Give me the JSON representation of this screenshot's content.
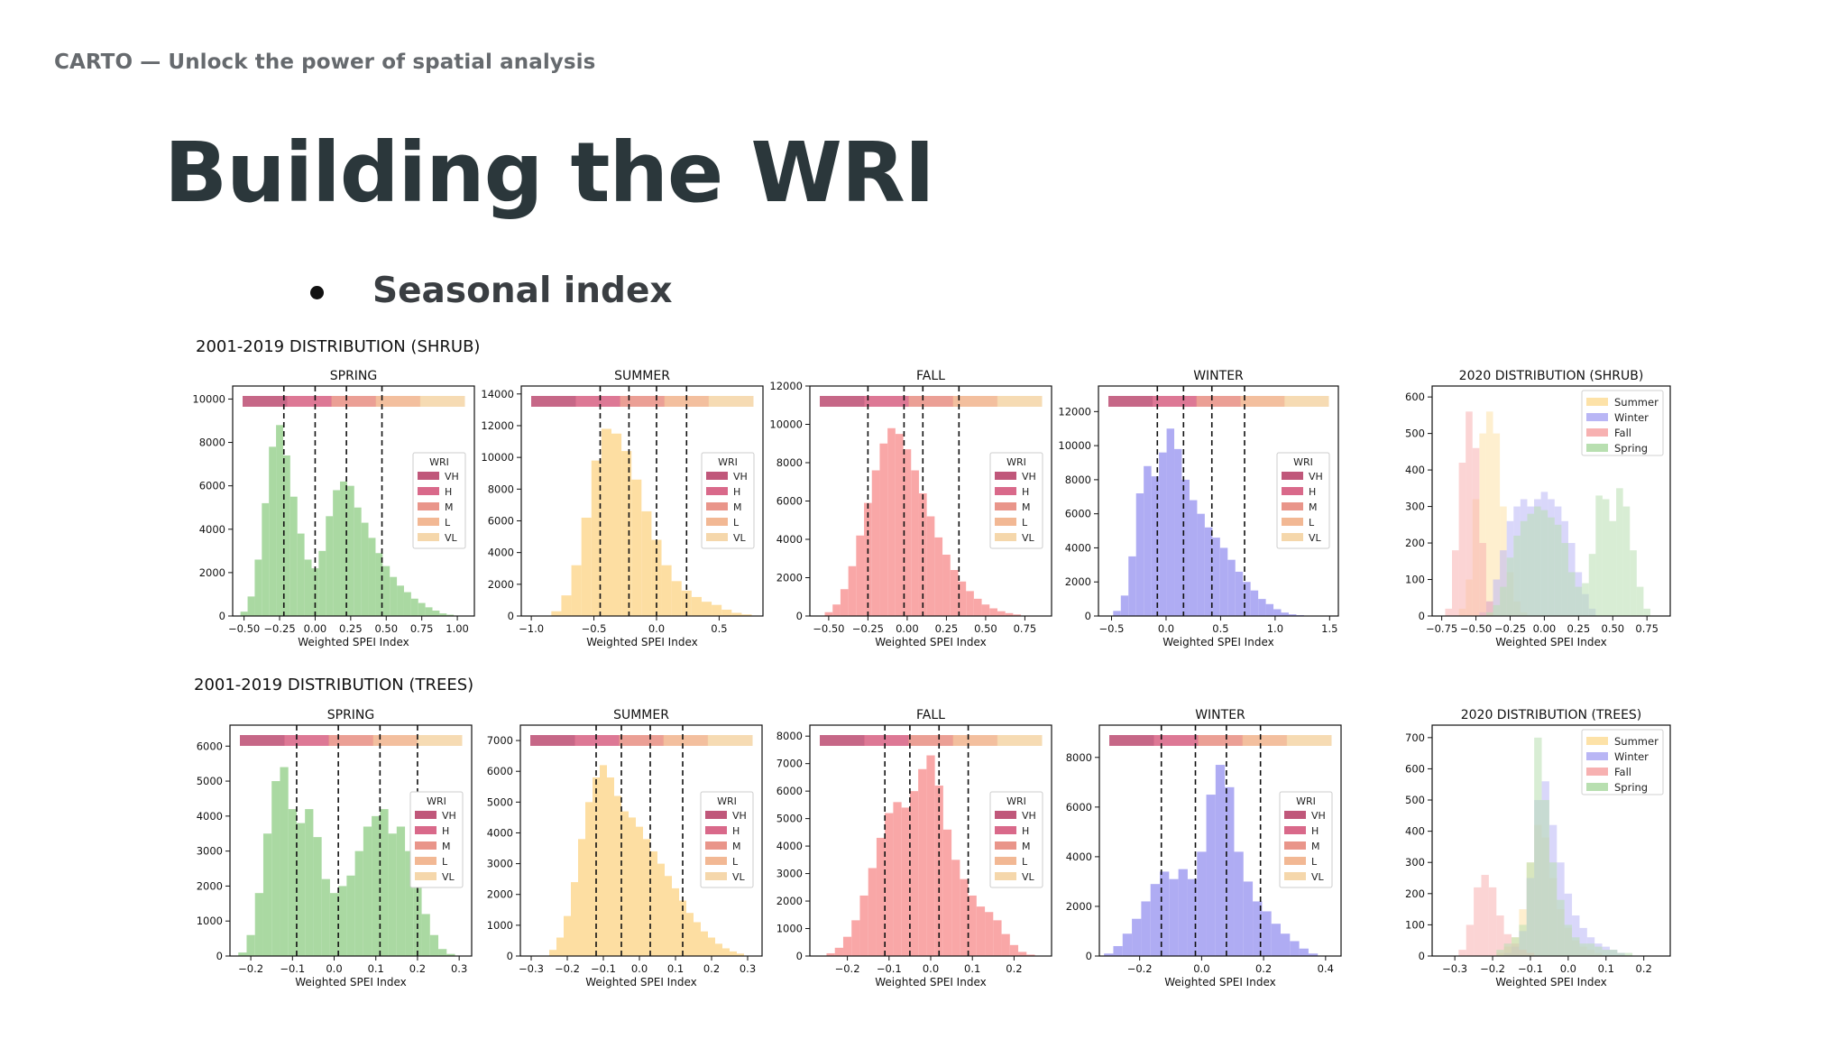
{
  "header": {
    "brand": "CARTO — Unlock the power of spatial analysis"
  },
  "slide": {
    "title": "Building the WRI",
    "bullet": "Seasonal index"
  },
  "rows": [
    {
      "title": "2001-2019 DISTRIBUTION (SHRUB)"
    },
    {
      "title": "2001-2019 DISTRIBUTION (TREES)"
    }
  ],
  "colors": {
    "spring": "#a3d69a",
    "summer": "#fddb9a",
    "fall": "#f9a0a0",
    "winter": "#a8a5f2",
    "wri": {
      "VH": "#c0577a",
      "H": "#d9698a",
      "M": "#e9958a",
      "L": "#f2b894",
      "VL": "#f5d7ab"
    },
    "overlay": {
      "Summer": "#fde2a8",
      "Winter": "#b9b6f5",
      "Fall": "#f7b1b1",
      "Spring": "#b8dfb0"
    }
  },
  "chart_data": [
    {
      "type": "bar",
      "title": "SPRING",
      "xlabel": "Weighted SPEI Index",
      "ylabel": "",
      "xlim": [
        -0.58,
        1.12
      ],
      "ylim": [
        0,
        10600
      ],
      "xticks": [
        -0.5,
        -0.25,
        0.0,
        0.25,
        0.5,
        0.75,
        1.0
      ],
      "xtick_labels": [
        "−0.50",
        "−0.25",
        "0.00",
        "0.25",
        "0.50",
        "0.75",
        "1.00"
      ],
      "yticks": [
        0,
        2000,
        4000,
        6000,
        8000,
        10000
      ],
      "x": [
        -0.5,
        -0.45,
        -0.4,
        -0.35,
        -0.3,
        -0.25,
        -0.2,
        -0.15,
        -0.1,
        -0.05,
        0.0,
        0.05,
        0.1,
        0.15,
        0.2,
        0.25,
        0.3,
        0.35,
        0.4,
        0.45,
        0.5,
        0.55,
        0.6,
        0.65,
        0.7,
        0.75,
        0.8,
        0.85,
        0.9,
        0.95,
        1.0
      ],
      "values": [
        200,
        900,
        2600,
        5200,
        7800,
        8800,
        7400,
        5500,
        3800,
        2600,
        2200,
        3000,
        4600,
        5800,
        6200,
        6000,
        5000,
        4300,
        3600,
        2900,
        2300,
        1800,
        1400,
        1100,
        800,
        600,
        400,
        250,
        120,
        60,
        20
      ],
      "thresholds": [
        -0.22,
        0.0,
        0.22,
        0.47
      ],
      "legend": {
        "title": "WRI",
        "labels": [
          "VH",
          "H",
          "M",
          "L",
          "VL"
        ]
      }
    },
    {
      "type": "bar",
      "title": "SUMMER",
      "xlabel": "Weighted SPEI Index",
      "ylabel": "",
      "xlim": [
        -1.08,
        0.85
      ],
      "ylim": [
        0,
        14500
      ],
      "xticks": [
        -1.0,
        -0.5,
        0.0,
        0.5
      ],
      "xtick_labels": [
        "−1.0",
        "−0.5",
        "0.0",
        "0.5"
      ],
      "yticks": [
        0,
        2000,
        4000,
        6000,
        8000,
        10000,
        12000,
        14000
      ],
      "x": [
        -0.8,
        -0.72,
        -0.64,
        -0.56,
        -0.48,
        -0.4,
        -0.32,
        -0.24,
        -0.16,
        -0.08,
        0.0,
        0.08,
        0.16,
        0.24,
        0.32,
        0.4,
        0.48,
        0.56,
        0.64,
        0.72
      ],
      "values": [
        300,
        1300,
        3200,
        6200,
        9800,
        11800,
        11500,
        10400,
        8600,
        6600,
        4800,
        3200,
        2200,
        1600,
        1200,
        900,
        700,
        400,
        200,
        100
      ],
      "thresholds": [
        -0.45,
        -0.22,
        0.0,
        0.24
      ],
      "legend": {
        "title": "WRI",
        "labels": [
          "VH",
          "H",
          "M",
          "L",
          "VL"
        ]
      }
    },
    {
      "type": "bar",
      "title": "FALL",
      "xlabel": "Weighted SPEI Index",
      "ylabel": "",
      "xlim": [
        -0.62,
        0.92
      ],
      "ylim": [
        0,
        12000
      ],
      "xticks": [
        -0.5,
        -0.25,
        0.0,
        0.25,
        0.5,
        0.75
      ],
      "xtick_labels": [
        "−0.50",
        "−0.25",
        "0.00",
        "0.25",
        "0.50",
        "0.75"
      ],
      "yticks": [
        0,
        2000,
        4000,
        6000,
        8000,
        10000,
        12000
      ],
      "x": [
        -0.5,
        -0.45,
        -0.4,
        -0.35,
        -0.3,
        -0.25,
        -0.2,
        -0.15,
        -0.1,
        -0.05,
        0.0,
        0.05,
        0.1,
        0.15,
        0.2,
        0.25,
        0.3,
        0.35,
        0.4,
        0.45,
        0.5,
        0.55,
        0.6,
        0.65,
        0.7
      ],
      "values": [
        200,
        600,
        1400,
        2600,
        4200,
        5900,
        7600,
        9000,
        9800,
        9500,
        8700,
        7600,
        6400,
        5200,
        4100,
        3200,
        2400,
        1800,
        1300,
        900,
        600,
        400,
        250,
        150,
        80
      ],
      "thresholds": [
        -0.25,
        -0.02,
        0.1,
        0.33
      ],
      "legend": {
        "title": "WRI",
        "labels": [
          "VH",
          "H",
          "M",
          "L",
          "VL"
        ]
      }
    },
    {
      "type": "bar",
      "title": "WINTER",
      "xlabel": "Weighted SPEI Index",
      "ylabel": "",
      "xlim": [
        -0.62,
        1.58
      ],
      "ylim": [
        0,
        13500
      ],
      "xticks": [
        -0.5,
        0.0,
        0.5,
        1.0,
        1.5
      ],
      "xtick_labels": [
        "−0.5",
        "0.0",
        "0.5",
        "1.0",
        "1.5"
      ],
      "yticks": [
        0,
        2000,
        4000,
        6000,
        8000,
        10000,
        12000
      ],
      "x": [
        -0.45,
        -0.38,
        -0.31,
        -0.24,
        -0.17,
        -0.1,
        -0.03,
        0.04,
        0.11,
        0.18,
        0.25,
        0.32,
        0.39,
        0.46,
        0.53,
        0.6,
        0.67,
        0.74,
        0.81,
        0.88,
        0.95,
        1.02,
        1.09,
        1.16,
        1.23
      ],
      "values": [
        300,
        1200,
        3500,
        7200,
        8800,
        8200,
        9600,
        11000,
        9800,
        8000,
        6800,
        6000,
        5200,
        4600,
        4000,
        3300,
        2600,
        2000,
        1500,
        1000,
        700,
        400,
        200,
        100,
        50
      ],
      "thresholds": [
        -0.08,
        0.16,
        0.42,
        0.72
      ],
      "legend": {
        "title": "WRI",
        "labels": [
          "VH",
          "H",
          "M",
          "L",
          "VL"
        ]
      }
    },
    {
      "type": "area",
      "title": "2020 DISTRIBUTION (SHRUB)",
      "xlabel": "Weighted SPEI Index",
      "ylabel": "",
      "xlim": [
        -0.82,
        0.92
      ],
      "ylim": [
        0,
        630
      ],
      "xticks": [
        -0.75,
        -0.5,
        -0.25,
        0.0,
        0.25,
        0.5,
        0.75
      ],
      "xtick_labels": [
        "−0.75",
        "−0.50",
        "−0.25",
        "0.00",
        "0.25",
        "0.50",
        "0.75"
      ],
      "yticks": [
        0,
        100,
        200,
        300,
        400,
        500,
        600
      ],
      "x": [
        -0.75,
        -0.7,
        -0.65,
        -0.6,
        -0.55,
        -0.5,
        -0.45,
        -0.4,
        -0.35,
        -0.3,
        -0.25,
        -0.2,
        -0.15,
        -0.1,
        -0.05,
        0.0,
        0.05,
        0.1,
        0.15,
        0.2,
        0.25,
        0.3,
        0.35,
        0.4,
        0.45,
        0.5,
        0.55,
        0.6,
        0.65,
        0.7,
        0.75,
        0.8
      ],
      "series": [
        {
          "name": "Summer",
          "values": [
            0,
            0,
            0,
            20,
            100,
            320,
            500,
            560,
            500,
            300,
            120,
            40,
            10,
            0,
            0,
            0,
            0,
            0,
            0,
            0,
            0,
            0,
            0,
            0,
            0,
            0,
            0,
            0,
            0,
            0,
            0,
            0
          ]
        },
        {
          "name": "Winter",
          "values": [
            0,
            0,
            0,
            0,
            0,
            0,
            10,
            40,
            100,
            180,
            260,
            300,
            320,
            300,
            320,
            340,
            320,
            300,
            260,
            200,
            120,
            60,
            20,
            0,
            0,
            0,
            0,
            0,
            0,
            0,
            0,
            0
          ]
        },
        {
          "name": "Fall",
          "values": [
            0,
            20,
            180,
            420,
            560,
            460,
            200,
            40,
            0,
            0,
            0,
            0,
            0,
            0,
            0,
            0,
            0,
            0,
            0,
            0,
            0,
            0,
            0,
            0,
            0,
            0,
            0,
            0,
            0,
            0,
            0,
            0
          ]
        },
        {
          "name": "Spring",
          "values": [
            0,
            0,
            0,
            0,
            0,
            0,
            0,
            10,
            30,
            80,
            160,
            220,
            260,
            280,
            300,
            290,
            270,
            250,
            200,
            120,
            80,
            90,
            170,
            330,
            320,
            260,
            350,
            300,
            180,
            80,
            20,
            0
          ]
        }
      ],
      "legend": {
        "labels": [
          "Summer",
          "Winter",
          "Fall",
          "Spring"
        ]
      }
    },
    {
      "type": "bar",
      "title": "SPRING",
      "xlabel": "Weighted SPEI Index",
      "ylabel": "",
      "xlim": [
        -0.25,
        0.33
      ],
      "ylim": [
        0,
        6600
      ],
      "xticks": [
        -0.2,
        -0.1,
        0.0,
        0.1,
        0.2,
        0.3
      ],
      "xtick_labels": [
        "−0.2",
        "−0.1",
        "0.0",
        "0.1",
        "0.2",
        "0.3"
      ],
      "yticks": [
        0,
        1000,
        2000,
        3000,
        4000,
        5000,
        6000
      ],
      "x": [
        -0.22,
        -0.2,
        -0.18,
        -0.16,
        -0.14,
        -0.12,
        -0.1,
        -0.08,
        -0.06,
        -0.04,
        -0.02,
        0.0,
        0.02,
        0.04,
        0.06,
        0.08,
        0.1,
        0.12,
        0.14,
        0.16,
        0.18,
        0.2,
        0.22,
        0.24,
        0.26,
        0.28
      ],
      "values": [
        100,
        600,
        1800,
        3500,
        5000,
        5400,
        4200,
        3800,
        4200,
        3400,
        2200,
        1800,
        2000,
        2300,
        3000,
        3700,
        4000,
        4200,
        3500,
        3700,
        3000,
        2200,
        1200,
        600,
        200,
        60
      ],
      "thresholds": [
        -0.09,
        0.01,
        0.11,
        0.2
      ],
      "legend": {
        "title": "WRI",
        "labels": [
          "VH",
          "H",
          "M",
          "L",
          "VL"
        ]
      }
    },
    {
      "type": "bar",
      "title": "SUMMER",
      "xlabel": "Weighted SPEI Index",
      "ylabel": "",
      "xlim": [
        -0.33,
        0.34
      ],
      "ylim": [
        0,
        7500
      ],
      "xticks": [
        -0.3,
        -0.2,
        -0.1,
        0.0,
        0.1,
        0.2,
        0.3
      ],
      "xtick_labels": [
        "−0.3",
        "−0.2",
        "−0.1",
        "0.0",
        "0.1",
        "0.2",
        "0.3"
      ],
      "yticks": [
        0,
        1000,
        2000,
        3000,
        4000,
        5000,
        6000,
        7000
      ],
      "x": [
        -0.24,
        -0.22,
        -0.2,
        -0.18,
        -0.16,
        -0.14,
        -0.12,
        -0.1,
        -0.08,
        -0.06,
        -0.04,
        -0.02,
        0.0,
        0.02,
        0.04,
        0.06,
        0.08,
        0.1,
        0.12,
        0.14,
        0.16,
        0.18,
        0.2,
        0.22,
        0.24,
        0.26,
        0.28
      ],
      "values": [
        200,
        600,
        1300,
        2400,
        3800,
        5000,
        5800,
        6200,
        5800,
        5200,
        4700,
        4500,
        4200,
        3800,
        3400,
        3000,
        2600,
        2200,
        1800,
        1400,
        1100,
        800,
        600,
        400,
        250,
        150,
        80
      ],
      "thresholds": [
        -0.12,
        -0.05,
        0.03,
        0.12
      ],
      "legend": {
        "title": "WRI",
        "labels": [
          "VH",
          "H",
          "M",
          "L",
          "VL"
        ]
      }
    },
    {
      "type": "bar",
      "title": "FALL",
      "xlabel": "Weighted SPEI Index",
      "ylabel": "",
      "xlim": [
        -0.29,
        0.29
      ],
      "ylim": [
        0,
        8400
      ],
      "xticks": [
        -0.2,
        -0.1,
        0.0,
        0.1,
        0.2
      ],
      "xtick_labels": [
        "−0.2",
        "−0.1",
        "0.0",
        "0.1",
        "0.2"
      ],
      "yticks": [
        0,
        1000,
        2000,
        3000,
        4000,
        5000,
        6000,
        7000,
        8000
      ],
      "x": [
        -0.24,
        -0.22,
        -0.2,
        -0.18,
        -0.16,
        -0.14,
        -0.12,
        -0.1,
        -0.08,
        -0.06,
        -0.04,
        -0.02,
        0.0,
        0.02,
        0.04,
        0.06,
        0.08,
        0.1,
        0.12,
        0.14,
        0.16,
        0.18,
        0.2,
        0.22,
        0.24
      ],
      "values": [
        100,
        300,
        700,
        1300,
        2200,
        3200,
        4300,
        5200,
        5600,
        5400,
        6000,
        6800,
        7300,
        6200,
        4600,
        3500,
        2800,
        2200,
        1800,
        1600,
        1300,
        800,
        400,
        150,
        50
      ],
      "thresholds": [
        -0.11,
        -0.05,
        0.02,
        0.09
      ],
      "legend": {
        "title": "WRI",
        "labels": [
          "VH",
          "H",
          "M",
          "L",
          "VL"
        ]
      }
    },
    {
      "type": "bar",
      "title": "WINTER",
      "xlabel": "Weighted SPEI Index",
      "ylabel": "",
      "xlim": [
        -0.33,
        0.45
      ],
      "ylim": [
        0,
        9300
      ],
      "xticks": [
        -0.2,
        0.0,
        0.2,
        0.4
      ],
      "xtick_labels": [
        "−0.2",
        "0.0",
        "0.2",
        "0.4"
      ],
      "yticks": [
        0,
        2000,
        4000,
        6000,
        8000
      ],
      "x": [
        -0.3,
        -0.27,
        -0.24,
        -0.21,
        -0.18,
        -0.15,
        -0.12,
        -0.09,
        -0.06,
        -0.03,
        0.0,
        0.03,
        0.06,
        0.09,
        0.12,
        0.15,
        0.18,
        0.21,
        0.24,
        0.27,
        0.3,
        0.33,
        0.36
      ],
      "values": [
        100,
        400,
        900,
        1500,
        2200,
        2900,
        3400,
        3100,
        3500,
        3100,
        4200,
        6500,
        7700,
        6800,
        4200,
        3000,
        2200,
        1800,
        1300,
        900,
        600,
        300,
        100
      ],
      "thresholds": [
        -0.13,
        -0.02,
        0.08,
        0.19
      ],
      "legend": {
        "title": "WRI",
        "labels": [
          "VH",
          "H",
          "M",
          "L",
          "VL"
        ]
      }
    },
    {
      "type": "area",
      "title": "2020 DISTRIBUTION (TREES)",
      "xlabel": "Weighted SPEI Index",
      "ylabel": "",
      "xlim": [
        -0.36,
        0.27
      ],
      "ylim": [
        0,
        740
      ],
      "xticks": [
        -0.3,
        -0.2,
        -0.1,
        0.0,
        0.1,
        0.2
      ],
      "xtick_labels": [
        "−0.3",
        "−0.2",
        "−0.1",
        "0.0",
        "0.1",
        "0.2"
      ],
      "yticks": [
        0,
        100,
        200,
        300,
        400,
        500,
        600,
        700
      ],
      "x": [
        -0.3,
        -0.28,
        -0.26,
        -0.24,
        -0.22,
        -0.2,
        -0.18,
        -0.16,
        -0.14,
        -0.12,
        -0.1,
        -0.08,
        -0.06,
        -0.04,
        -0.02,
        0.0,
        0.02,
        0.04,
        0.06,
        0.08,
        0.1,
        0.12,
        0.14,
        0.16,
        0.18,
        0.2
      ],
      "series": [
        {
          "name": "Summer",
          "values": [
            0,
            0,
            0,
            0,
            0,
            0,
            10,
            30,
            60,
            150,
            300,
            420,
            380,
            250,
            150,
            90,
            50,
            30,
            20,
            10,
            0,
            0,
            0,
            0,
            0,
            0
          ]
        },
        {
          "name": "Winter",
          "values": [
            0,
            0,
            0,
            0,
            0,
            0,
            0,
            10,
            30,
            80,
            250,
            500,
            560,
            420,
            300,
            200,
            130,
            90,
            60,
            40,
            30,
            20,
            10,
            0,
            0,
            0
          ]
        },
        {
          "name": "Fall",
          "values": [
            0,
            20,
            100,
            220,
            260,
            220,
            130,
            70,
            40,
            20,
            10,
            0,
            0,
            0,
            0,
            0,
            0,
            0,
            0,
            0,
            0,
            0,
            0,
            0,
            0,
            0
          ]
        },
        {
          "name": "Spring",
          "values": [
            0,
            0,
            0,
            0,
            0,
            0,
            20,
            40,
            60,
            100,
            300,
            700,
            500,
            300,
            180,
            100,
            60,
            40,
            40,
            30,
            20,
            20,
            10,
            10,
            0,
            0
          ]
        }
      ],
      "legend": {
        "labels": [
          "Summer",
          "Winter",
          "Fall",
          "Spring"
        ]
      }
    }
  ]
}
